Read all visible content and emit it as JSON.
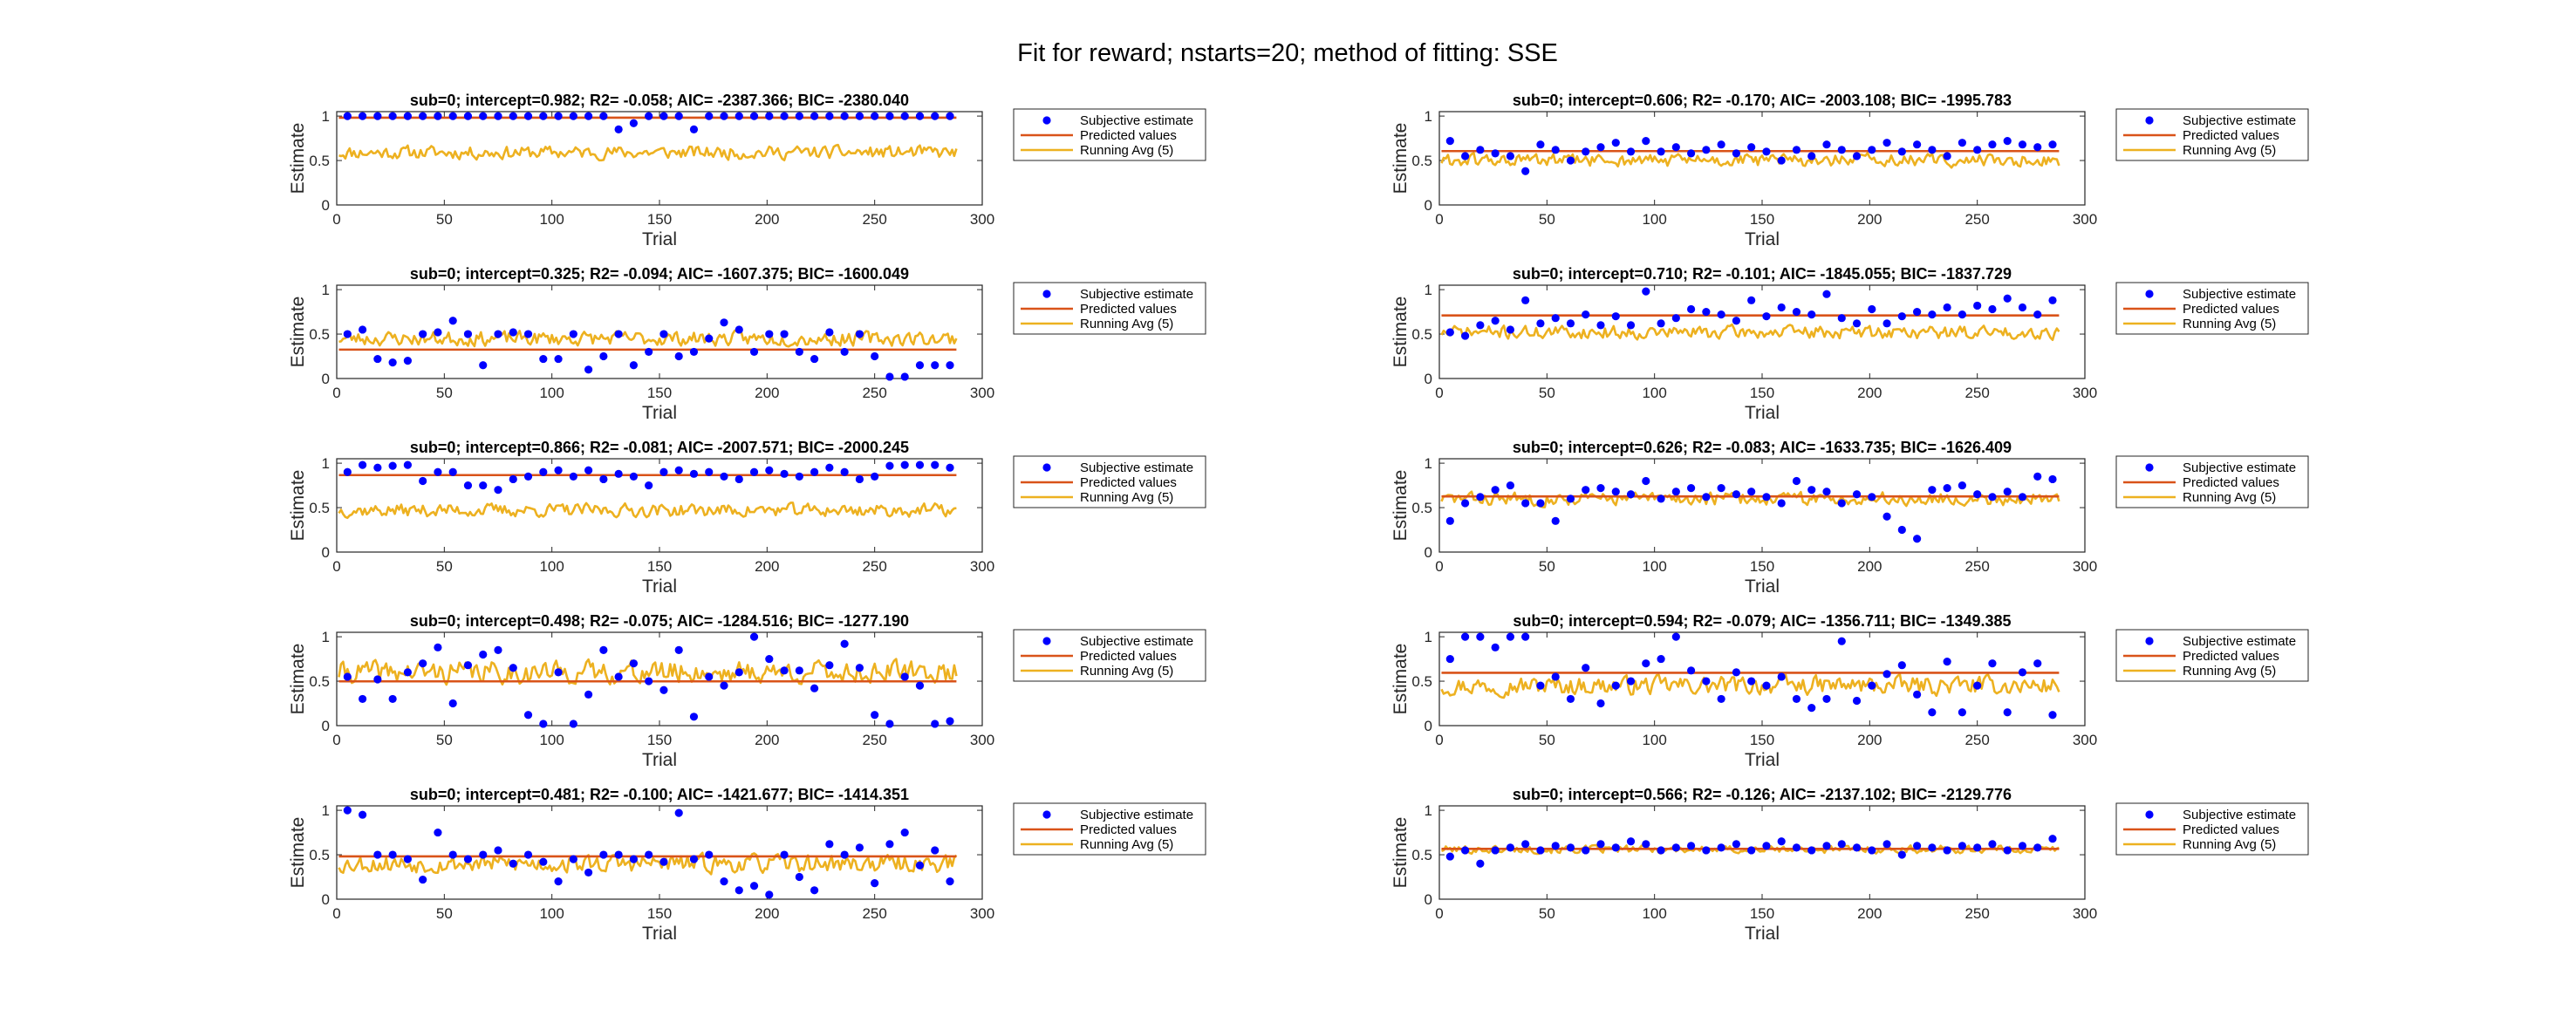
{
  "figure": {
    "suptitle": "Fit for reward; nstarts=20; method of fitting: SSE",
    "colors": {
      "subjective": "#0000ff",
      "predicted": "#d95319",
      "running": "#edb120",
      "axis": "#262626"
    }
  },
  "chart_data": [
    {
      "type": "line",
      "title": "sub=0; intercept=0.982; R2= -0.058; AIC= -2387.366; BIC= -2380.040",
      "xlabel": "Trial",
      "ylabel": "Estimate",
      "xlim": [
        0,
        300
      ],
      "ylim": [
        0,
        1.05
      ],
      "xticks": [
        0,
        50,
        100,
        150,
        200,
        250,
        300
      ],
      "yticks": [
        0,
        0.5,
        1
      ],
      "legend": [
        "Subjective estimate",
        "Predicted values",
        "Running Avg (5)"
      ],
      "legend_position": "outside-right",
      "intercept": 0.982,
      "subjective_x": [
        5,
        12,
        19,
        26,
        33,
        40,
        47,
        54,
        61,
        68,
        75,
        82,
        89,
        96,
        103,
        110,
        117,
        124,
        131,
        138,
        145,
        152,
        159,
        166,
        173,
        180,
        187,
        194,
        201,
        208,
        215,
        222,
        229,
        236,
        243,
        250,
        257,
        264,
        271,
        278,
        285
      ],
      "subjective_y": [
        1,
        1,
        1,
        1,
        1,
        1,
        1,
        1,
        1,
        1,
        1,
        1,
        1,
        1,
        1,
        1,
        1,
        1,
        0.85,
        0.92,
        1,
        1,
        1,
        0.85,
        1,
        1,
        1,
        1,
        1,
        1,
        1,
        1,
        1,
        1,
        1,
        1,
        1,
        1,
        1,
        1,
        1
      ],
      "running_avg": {
        "x_range": [
          1,
          288
        ],
        "mean": 0.59,
        "amplitude": 0.1,
        "seed": 11
      }
    },
    {
      "type": "line",
      "title": "sub=0; intercept=0.325; R2= -0.094; AIC= -1607.375; BIC= -1600.049",
      "xlabel": "Trial",
      "ylabel": "Estimate",
      "xlim": [
        0,
        300
      ],
      "ylim": [
        0,
        1.05
      ],
      "xticks": [
        0,
        50,
        100,
        150,
        200,
        250,
        300
      ],
      "yticks": [
        0,
        0.5,
        1
      ],
      "legend": [
        "Subjective estimate",
        "Predicted values",
        "Running Avg (5)"
      ],
      "legend_position": "outside-right",
      "intercept": 0.325,
      "subjective_x": [
        5,
        12,
        19,
        26,
        33,
        40,
        47,
        54,
        61,
        68,
        75,
        82,
        89,
        96,
        103,
        110,
        117,
        124,
        131,
        138,
        145,
        152,
        159,
        166,
        173,
        180,
        187,
        194,
        201,
        208,
        215,
        222,
        229,
        236,
        243,
        250,
        257,
        264,
        271,
        278,
        285
      ],
      "subjective_y": [
        0.5,
        0.55,
        0.22,
        0.18,
        0.2,
        0.5,
        0.52,
        0.65,
        0.5,
        0.15,
        0.5,
        0.52,
        0.5,
        0.22,
        0.22,
        0.5,
        0.1,
        0.25,
        0.5,
        0.15,
        0.3,
        0.5,
        0.25,
        0.3,
        0.45,
        0.63,
        0.55,
        0.3,
        0.5,
        0.5,
        0.3,
        0.22,
        0.52,
        0.3,
        0.5,
        0.25,
        0.02,
        0.02,
        0.15,
        0.15,
        0.15
      ],
      "running_avg": {
        "x_range": [
          1,
          288
        ],
        "mean": 0.45,
        "amplitude": 0.11,
        "seed": 23
      }
    },
    {
      "type": "line",
      "title": "sub=0; intercept=0.866; R2= -0.081; AIC= -2007.571; BIC= -2000.245",
      "xlabel": "Trial",
      "ylabel": "Estimate",
      "xlim": [
        0,
        300
      ],
      "ylim": [
        0,
        1.05
      ],
      "xticks": [
        0,
        50,
        100,
        150,
        200,
        250,
        300
      ],
      "yticks": [
        0,
        0.5,
        1
      ],
      "legend": [
        "Subjective estimate",
        "Predicted values",
        "Running Avg (5)"
      ],
      "legend_position": "outside-right",
      "intercept": 0.866,
      "subjective_x": [
        5,
        12,
        19,
        26,
        33,
        40,
        47,
        54,
        61,
        68,
        75,
        82,
        89,
        96,
        103,
        110,
        117,
        124,
        131,
        138,
        145,
        152,
        159,
        166,
        173,
        180,
        187,
        194,
        201,
        208,
        215,
        222,
        229,
        236,
        243,
        250,
        257,
        264,
        271,
        278,
        285
      ],
      "subjective_y": [
        0.9,
        0.98,
        0.95,
        0.97,
        0.98,
        0.8,
        0.9,
        0.9,
        0.75,
        0.75,
        0.7,
        0.82,
        0.85,
        0.9,
        0.92,
        0.85,
        0.92,
        0.82,
        0.88,
        0.85,
        0.75,
        0.9,
        0.92,
        0.88,
        0.9,
        0.85,
        0.82,
        0.9,
        0.92,
        0.88,
        0.85,
        0.9,
        0.95,
        0.9,
        0.82,
        0.85,
        0.97,
        0.98,
        0.98,
        0.98,
        0.95
      ],
      "running_avg": {
        "x_range": [
          1,
          288
        ],
        "mean": 0.47,
        "amplitude": 0.1,
        "seed": 37
      }
    },
    {
      "type": "line",
      "title": "sub=0; intercept=0.498; R2= -0.075; AIC= -1284.516; BIC= -1277.190",
      "xlabel": "Trial",
      "ylabel": "Estimate",
      "xlim": [
        0,
        300
      ],
      "ylim": [
        0,
        1.05
      ],
      "xticks": [
        0,
        50,
        100,
        150,
        200,
        250,
        300
      ],
      "yticks": [
        0,
        0.5,
        1
      ],
      "legend": [
        "Subjective estimate",
        "Predicted values",
        "Running Avg (5)"
      ],
      "legend_position": "outside-right",
      "intercept": 0.498,
      "subjective_x": [
        5,
        12,
        19,
        26,
        33,
        40,
        47,
        54,
        61,
        68,
        75,
        82,
        89,
        96,
        103,
        110,
        117,
        124,
        131,
        138,
        145,
        152,
        159,
        166,
        173,
        180,
        187,
        194,
        201,
        208,
        215,
        222,
        229,
        236,
        243,
        250,
        257,
        264,
        271,
        278,
        285
      ],
      "subjective_y": [
        0.55,
        0.3,
        0.52,
        0.3,
        0.6,
        0.7,
        0.88,
        0.25,
        0.68,
        0.8,
        0.85,
        0.65,
        0.12,
        0.02,
        0.6,
        0.02,
        0.35,
        0.85,
        0.55,
        0.7,
        0.5,
        0.4,
        0.85,
        0.1,
        0.55,
        0.45,
        0.6,
        1.0,
        0.75,
        0.62,
        0.62,
        0.42,
        0.68,
        0.92,
        0.65,
        0.12,
        0.02,
        0.55,
        0.45,
        0.02,
        0.05
      ],
      "running_avg": {
        "x_range": [
          1,
          288
        ],
        "mean": 0.6,
        "amplitude": 0.17,
        "seed": 41
      }
    },
    {
      "type": "line",
      "title": "sub=0; intercept=0.481; R2= -0.100; AIC= -1421.677; BIC= -1414.351",
      "xlabel": "Trial",
      "ylabel": "Estimate",
      "xlim": [
        0,
        300
      ],
      "ylim": [
        0,
        1.05
      ],
      "xticks": [
        0,
        50,
        100,
        150,
        200,
        250,
        300
      ],
      "yticks": [
        0,
        0.5,
        1
      ],
      "legend": [
        "Subjective estimate",
        "Predicted values",
        "Running Avg (5)"
      ],
      "legend_position": "outside-right",
      "intercept": 0.481,
      "subjective_x": [
        5,
        12,
        19,
        26,
        33,
        40,
        47,
        54,
        61,
        68,
        75,
        82,
        89,
        96,
        103,
        110,
        117,
        124,
        131,
        138,
        145,
        152,
        159,
        166,
        173,
        180,
        187,
        194,
        201,
        208,
        215,
        222,
        229,
        236,
        243,
        250,
        257,
        264,
        271,
        278,
        285
      ],
      "subjective_y": [
        1.0,
        0.95,
        0.5,
        0.5,
        0.45,
        0.22,
        0.75,
        0.5,
        0.45,
        0.5,
        0.55,
        0.4,
        0.5,
        0.42,
        0.2,
        0.45,
        0.3,
        0.5,
        0.5,
        0.45,
        0.5,
        0.42,
        0.97,
        0.45,
        0.5,
        0.2,
        0.1,
        0.15,
        0.05,
        0.5,
        0.25,
        0.1,
        0.62,
        0.5,
        0.58,
        0.18,
        0.62,
        0.75,
        0.38,
        0.55,
        0.2
      ],
      "running_avg": {
        "x_range": [
          1,
          288
        ],
        "mean": 0.4,
        "amplitude": 0.14,
        "seed": 53
      }
    },
    {
      "type": "line",
      "title": "sub=0; intercept=0.606; R2= -0.170; AIC= -2003.108; BIC= -1995.783",
      "xlabel": "Trial",
      "ylabel": "Estimate",
      "xlim": [
        0,
        300
      ],
      "ylim": [
        0,
        1.05
      ],
      "xticks": [
        0,
        50,
        100,
        150,
        200,
        250,
        300
      ],
      "yticks": [
        0,
        0.5,
        1
      ],
      "legend": [
        "Subjective estimate",
        "Predicted values",
        "Running Avg (5)"
      ],
      "legend_position": "outside-right",
      "intercept": 0.606,
      "subjective_x": [
        5,
        12,
        19,
        26,
        33,
        40,
        47,
        54,
        61,
        68,
        75,
        82,
        89,
        96,
        103,
        110,
        117,
        124,
        131,
        138,
        145,
        152,
        159,
        166,
        173,
        180,
        187,
        194,
        201,
        208,
        215,
        222,
        229,
        236,
        243,
        250,
        257,
        264,
        271,
        278,
        285
      ],
      "subjective_y": [
        0.72,
        0.55,
        0.62,
        0.58,
        0.55,
        0.38,
        0.68,
        0.62,
        0.5,
        0.6,
        0.65,
        0.7,
        0.6,
        0.72,
        0.6,
        0.65,
        0.58,
        0.62,
        0.68,
        0.58,
        0.65,
        0.6,
        0.5,
        0.62,
        0.55,
        0.68,
        0.62,
        0.55,
        0.62,
        0.7,
        0.6,
        0.68,
        0.62,
        0.55,
        0.7,
        0.62,
        0.68,
        0.72,
        0.68,
        0.65,
        0.68
      ],
      "running_avg": {
        "x_range": [
          1,
          288
        ],
        "mean": 0.5,
        "amplitude": 0.1,
        "seed": 61
      }
    },
    {
      "type": "line",
      "title": "sub=0; intercept=0.710; R2= -0.101; AIC= -1845.055; BIC= -1837.729",
      "xlabel": "Trial",
      "ylabel": "Estimate",
      "xlim": [
        0,
        300
      ],
      "ylim": [
        0,
        1.05
      ],
      "xticks": [
        0,
        50,
        100,
        150,
        200,
        250,
        300
      ],
      "yticks": [
        0,
        0.5,
        1
      ],
      "legend": [
        "Subjective estimate",
        "Predicted values",
        "Running Avg (5)"
      ],
      "legend_position": "outside-right",
      "intercept": 0.71,
      "subjective_x": [
        5,
        12,
        19,
        26,
        33,
        40,
        47,
        54,
        61,
        68,
        75,
        82,
        89,
        96,
        103,
        110,
        117,
        124,
        131,
        138,
        145,
        152,
        159,
        166,
        173,
        180,
        187,
        194,
        201,
        208,
        215,
        222,
        229,
        236,
        243,
        250,
        257,
        264,
        271,
        278,
        285
      ],
      "subjective_y": [
        0.52,
        0.48,
        0.6,
        0.65,
        0.55,
        0.88,
        0.62,
        0.68,
        0.62,
        0.72,
        0.6,
        0.7,
        0.6,
        0.98,
        0.62,
        0.68,
        0.78,
        0.75,
        0.72,
        0.65,
        0.88,
        0.7,
        0.8,
        0.75,
        0.72,
        0.95,
        0.68,
        0.62,
        0.78,
        0.62,
        0.7,
        0.75,
        0.72,
        0.8,
        0.72,
        0.82,
        0.78,
        0.9,
        0.8,
        0.72,
        0.88
      ],
      "running_avg": {
        "x_range": [
          1,
          288
        ],
        "mean": 0.52,
        "amplitude": 0.1,
        "seed": 71
      }
    },
    {
      "type": "line",
      "title": "sub=0; intercept=0.626; R2= -0.083; AIC= -1633.735; BIC= -1626.409",
      "xlabel": "Trial",
      "ylabel": "Estimate",
      "xlim": [
        0,
        300
      ],
      "ylim": [
        0,
        1.05
      ],
      "xticks": [
        0,
        50,
        100,
        150,
        200,
        250,
        300
      ],
      "yticks": [
        0,
        0.5,
        1
      ],
      "legend": [
        "Subjective estimate",
        "Predicted values",
        "Running Avg (5)"
      ],
      "legend_position": "outside-right",
      "intercept": 0.626,
      "subjective_x": [
        5,
        12,
        19,
        26,
        33,
        40,
        47,
        54,
        61,
        68,
        75,
        82,
        89,
        96,
        103,
        110,
        117,
        124,
        131,
        138,
        145,
        152,
        159,
        166,
        173,
        180,
        187,
        194,
        201,
        208,
        215,
        222,
        229,
        236,
        243,
        250,
        257,
        264,
        271,
        278,
        285
      ],
      "subjective_y": [
        0.35,
        0.55,
        0.62,
        0.7,
        0.75,
        0.55,
        0.55,
        0.35,
        0.6,
        0.7,
        0.72,
        0.68,
        0.65,
        0.8,
        0.6,
        0.68,
        0.72,
        0.62,
        0.72,
        0.65,
        0.68,
        0.62,
        0.55,
        0.8,
        0.7,
        0.68,
        0.55,
        0.65,
        0.62,
        0.4,
        0.25,
        0.15,
        0.7,
        0.72,
        0.75,
        0.65,
        0.62,
        0.68,
        0.62,
        0.85,
        0.82
      ],
      "running_avg": {
        "x_range": [
          1,
          288
        ],
        "mean": 0.6,
        "amplitude": 0.1,
        "seed": 83
      }
    },
    {
      "type": "line",
      "title": "sub=0; intercept=0.594; R2= -0.079; AIC= -1356.711; BIC= -1349.385",
      "xlabel": "Trial",
      "ylabel": "Estimate",
      "xlim": [
        0,
        300
      ],
      "ylim": [
        0,
        1.05
      ],
      "xticks": [
        0,
        50,
        100,
        150,
        200,
        250,
        300
      ],
      "yticks": [
        0,
        0.5,
        1
      ],
      "legend": [
        "Subjective estimate",
        "Predicted values",
        "Running Avg (5)"
      ],
      "legend_position": "outside-right",
      "intercept": 0.594,
      "subjective_x": [
        5,
        12,
        19,
        26,
        33,
        40,
        47,
        54,
        61,
        68,
        75,
        82,
        89,
        96,
        103,
        110,
        117,
        124,
        131,
        138,
        145,
        152,
        159,
        166,
        173,
        180,
        187,
        194,
        201,
        208,
        215,
        222,
        229,
        236,
        243,
        250,
        257,
        264,
        271,
        278,
        285
      ],
      "subjective_y": [
        0.75,
        1.0,
        1.0,
        0.88,
        1.0,
        1.0,
        0.45,
        0.55,
        0.3,
        0.65,
        0.25,
        0.45,
        0.5,
        0.7,
        0.75,
        1.0,
        0.62,
        0.5,
        0.3,
        0.6,
        0.5,
        0.45,
        0.55,
        0.3,
        0.2,
        0.3,
        0.95,
        0.28,
        0.45,
        0.58,
        0.68,
        0.35,
        0.15,
        0.72,
        0.15,
        0.45,
        0.7,
        0.15,
        0.6,
        0.7,
        0.12
      ],
      "running_avg": {
        "x_range": [
          1,
          288
        ],
        "mean": 0.45,
        "amplitude": 0.14,
        "seed": 97
      }
    },
    {
      "type": "line",
      "title": "sub=0; intercept=0.566; R2= -0.126; AIC= -2137.102; BIC= -2129.776",
      "xlabel": "Trial",
      "ylabel": "Estimate",
      "xlim": [
        0,
        300
      ],
      "ylim": [
        0,
        1.05
      ],
      "xticks": [
        0,
        50,
        100,
        150,
        200,
        250,
        300
      ],
      "yticks": [
        0,
        0.5,
        1
      ],
      "legend": [
        "Subjective estimate",
        "Predicted values",
        "Running Avg (5)"
      ],
      "legend_position": "outside-right",
      "intercept": 0.566,
      "subjective_x": [
        5,
        12,
        19,
        26,
        33,
        40,
        47,
        54,
        61,
        68,
        75,
        82,
        89,
        96,
        103,
        110,
        117,
        124,
        131,
        138,
        145,
        152,
        159,
        166,
        173,
        180,
        187,
        194,
        201,
        208,
        215,
        222,
        229,
        236,
        243,
        250,
        257,
        264,
        271,
        278,
        285
      ],
      "subjective_y": [
        0.48,
        0.55,
        0.4,
        0.55,
        0.58,
        0.62,
        0.55,
        0.6,
        0.58,
        0.55,
        0.62,
        0.58,
        0.65,
        0.62,
        0.55,
        0.58,
        0.6,
        0.55,
        0.58,
        0.62,
        0.55,
        0.6,
        0.65,
        0.58,
        0.55,
        0.6,
        0.62,
        0.58,
        0.55,
        0.62,
        0.5,
        0.6,
        0.58,
        0.55,
        0.6,
        0.58,
        0.62,
        0.55,
        0.6,
        0.58,
        0.68
      ],
      "running_avg": {
        "x_range": [
          1,
          288
        ],
        "mean": 0.56,
        "amplitude": 0.06,
        "seed": 101
      }
    }
  ]
}
